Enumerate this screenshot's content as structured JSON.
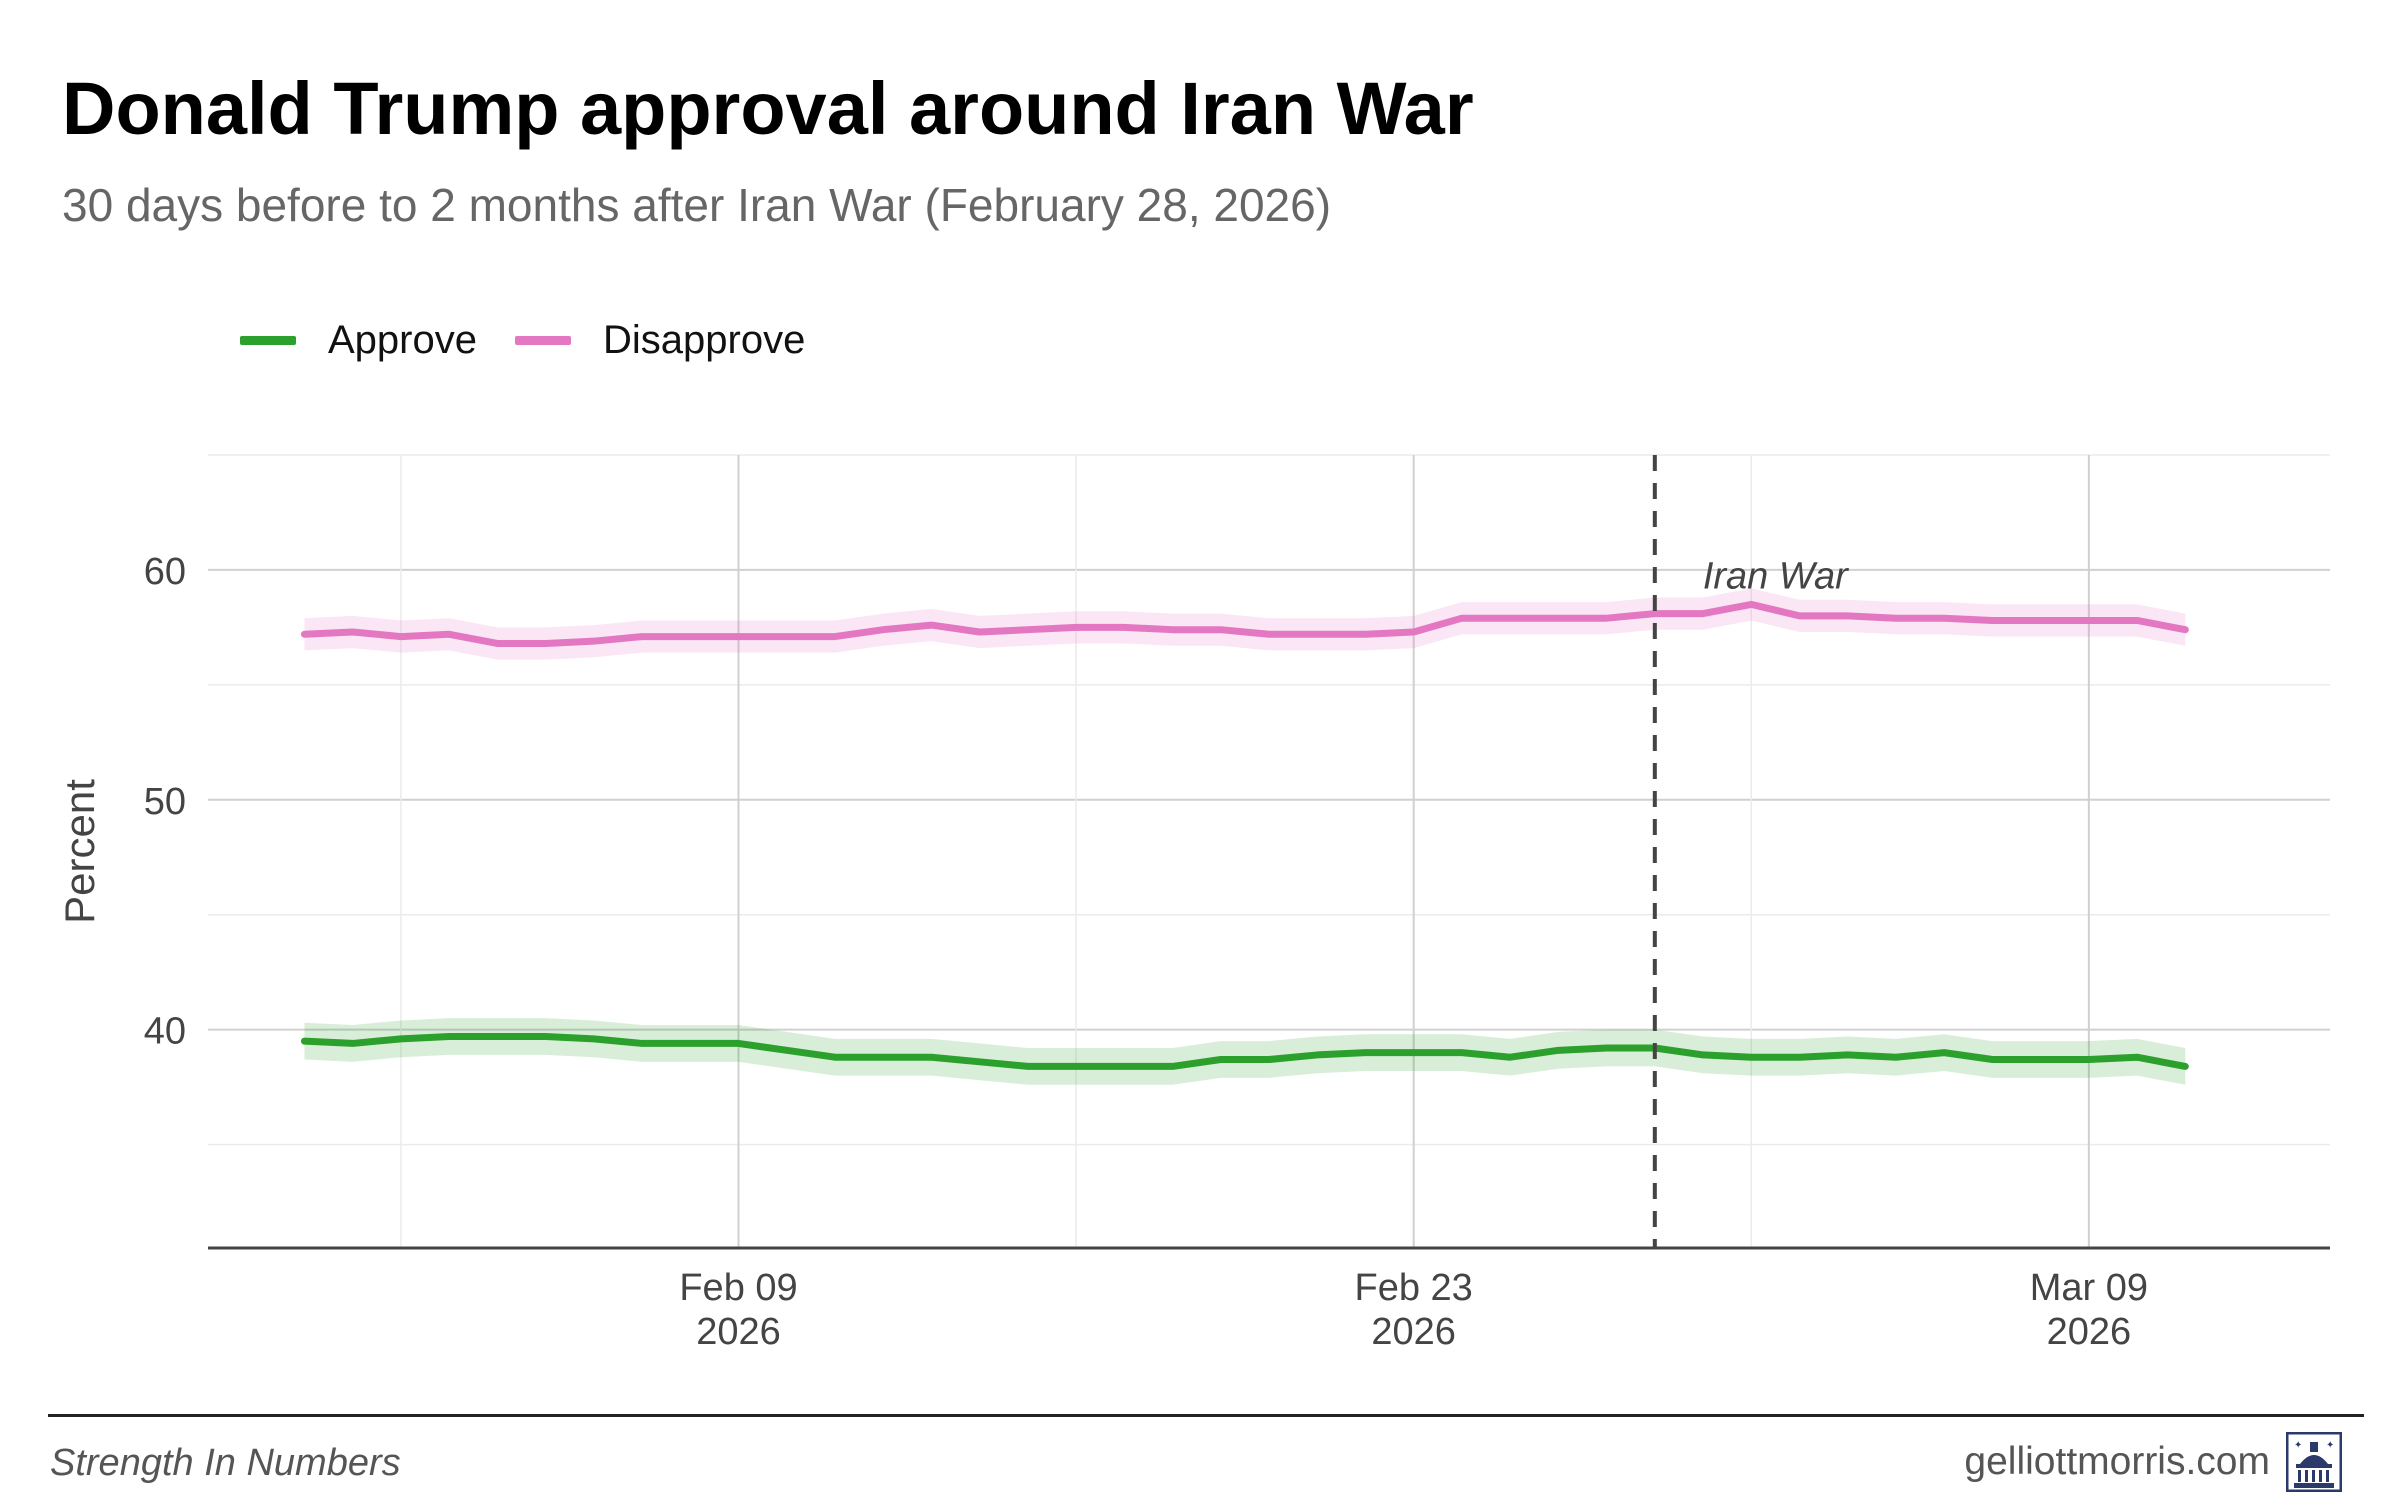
{
  "title": "Donald Trump approval around Iran War",
  "subtitle": "30 days before to 2 months after Iran War (February 28, 2026)",
  "legend": [
    {
      "label": "Approve",
      "color": "#2ca02c"
    },
    {
      "label": "Disapprove",
      "color": "#e377c2"
    }
  ],
  "footer": {
    "left": "Strength In Numbers",
    "right": "gelliottmorris.com",
    "logo_icon": "capitol-building-icon"
  },
  "chart_data": {
    "type": "line",
    "xlabel": "",
    "ylabel": "Percent",
    "ylim": [
      30.5,
      65
    ],
    "y_ticks": [
      40,
      50,
      60
    ],
    "x_range": [
      "2026-01-29",
      "2026-03-14"
    ],
    "x_ticks": [
      {
        "date": "2026-02-09",
        "label_line1": "Feb 09",
        "label_line2": "2026"
      },
      {
        "date": "2026-02-23",
        "label_line1": "Feb 23",
        "label_line2": "2026"
      },
      {
        "date": "2026-03-09",
        "label_line1": "Mar 09",
        "label_line2": "2026"
      }
    ],
    "event": {
      "date": "2026-02-28",
      "label": "Iran War"
    },
    "x": [
      "2026-01-31",
      "2026-02-01",
      "2026-02-02",
      "2026-02-03",
      "2026-02-04",
      "2026-02-05",
      "2026-02-06",
      "2026-02-07",
      "2026-02-08",
      "2026-02-09",
      "2026-02-10",
      "2026-02-11",
      "2026-02-12",
      "2026-02-13",
      "2026-02-14",
      "2026-02-15",
      "2026-02-16",
      "2026-02-17",
      "2026-02-18",
      "2026-02-19",
      "2026-02-20",
      "2026-02-21",
      "2026-02-22",
      "2026-02-23",
      "2026-02-24",
      "2026-02-25",
      "2026-02-26",
      "2026-02-27",
      "2026-02-28",
      "2026-03-01",
      "2026-03-02",
      "2026-03-03",
      "2026-03-04",
      "2026-03-05",
      "2026-03-06",
      "2026-03-07",
      "2026-03-08",
      "2026-03-09",
      "2026-03-10",
      "2026-03-11"
    ],
    "series": [
      {
        "name": "Approve",
        "color": "#2ca02c",
        "values": [
          39.5,
          39.4,
          39.6,
          39.7,
          39.7,
          39.7,
          39.6,
          39.4,
          39.4,
          39.4,
          39.1,
          38.8,
          38.8,
          38.8,
          38.6,
          38.4,
          38.4,
          38.4,
          38.4,
          38.7,
          38.7,
          38.9,
          39.0,
          39.0,
          39.0,
          38.8,
          39.1,
          39.2,
          39.2,
          38.9,
          38.8,
          38.8,
          38.9,
          38.8,
          39.0,
          38.7,
          38.7,
          38.7,
          38.8,
          38.4
        ],
        "ci_halfwidth": 0.8
      },
      {
        "name": "Disapprove",
        "color": "#e377c2",
        "values": [
          57.2,
          57.3,
          57.1,
          57.2,
          56.8,
          56.8,
          56.9,
          57.1,
          57.1,
          57.1,
          57.1,
          57.1,
          57.4,
          57.6,
          57.3,
          57.4,
          57.5,
          57.5,
          57.4,
          57.4,
          57.2,
          57.2,
          57.2,
          57.3,
          57.9,
          57.9,
          57.9,
          57.9,
          58.1,
          58.1,
          58.5,
          58.0,
          58.0,
          57.9,
          57.9,
          57.8,
          57.8,
          57.8,
          57.8,
          57.4
        ],
        "ci_halfwidth": 0.7
      }
    ]
  }
}
